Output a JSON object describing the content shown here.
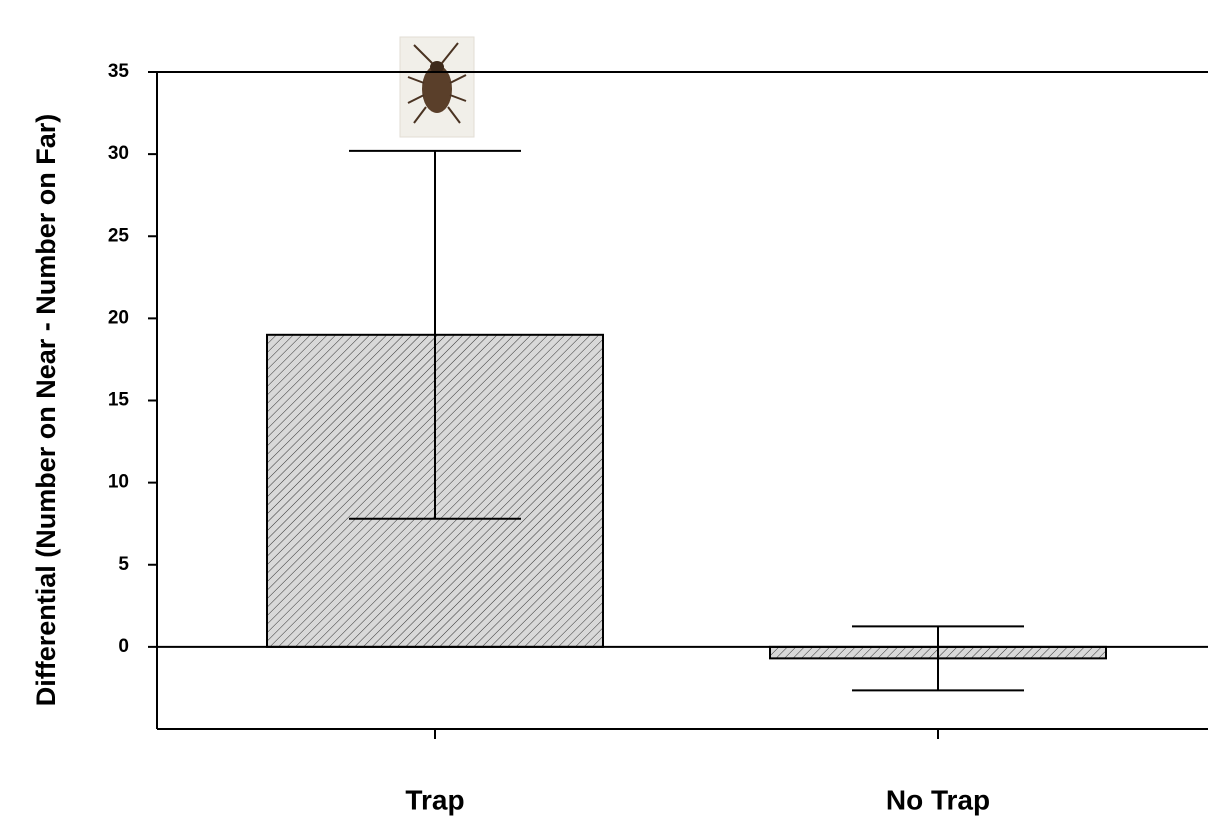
{
  "chart_data": {
    "type": "bar",
    "y_label": "Differential (Number on Near - Number on Far)",
    "categories": [
      "Trap",
      "No Trap"
    ],
    "values": [
      19.0,
      -0.7
    ],
    "errors": [
      11.2,
      1.95
    ],
    "color": "#d9d9d9",
    "ylim": [
      -5,
      35
    ],
    "yticks": [
      0,
      5,
      10,
      15,
      20,
      25,
      30,
      35
    ]
  }
}
